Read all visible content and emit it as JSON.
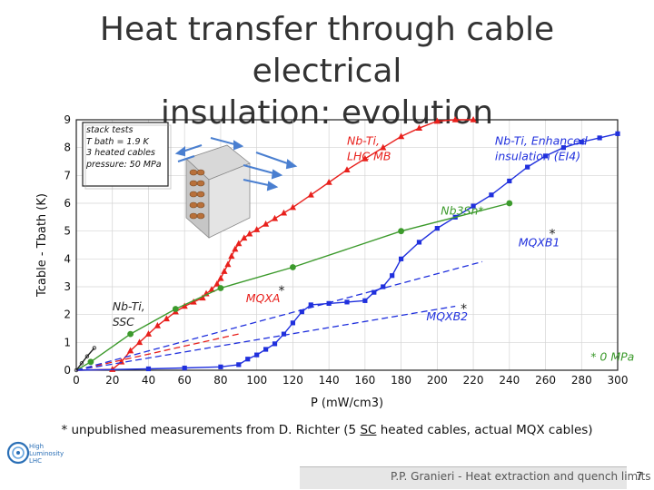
{
  "slide": {
    "title_line1": "Heat transfer through cable electrical",
    "title_line2": "insulation: evolution",
    "footnote_prefix": "* unpublished measurements from D. Richter (5 ",
    "footnote_sc": "SC",
    "footnote_suffix": " heated cables, actual MQX cables)",
    "footer_text": "P.P. Granieri - Heat extraction and quench limits",
    "page_number": "7",
    "logo_lines": [
      "High",
      "Luminosity",
      "LHC"
    ]
  },
  "chart_data": {
    "type": "line",
    "xlabel": "P (mW/cm3)",
    "ylabel": "Tcable - Tbath (K)",
    "xlim": [
      0,
      300
    ],
    "ylim": [
      0,
      9
    ],
    "xticks": [
      0,
      20,
      40,
      60,
      80,
      100,
      120,
      140,
      160,
      180,
      200,
      220,
      240,
      260,
      280,
      300
    ],
    "yticks": [
      0,
      1,
      2,
      3,
      4,
      5,
      6,
      7,
      8,
      9
    ],
    "legend_box": {
      "lines": [
        "stack tests",
        "T bath = 1.9 K",
        "3 heated cables",
        "pressure: 50 MPa"
      ],
      "placement": "top-left"
    },
    "colors": {
      "red": "#e8201c",
      "blue": "#2030dd",
      "green": "#3c9a2c",
      "black": "#222222"
    },
    "series": [
      {
        "name": "Nb-Ti, LHC MB",
        "color": "#e8201c",
        "style": "solid-triangles",
        "x": [
          0,
          20,
          25,
          30,
          35,
          40,
          45,
          50,
          55,
          60,
          65,
          70,
          72,
          75,
          78,
          80,
          82,
          84,
          86,
          88,
          90,
          93,
          96,
          100,
          105,
          110,
          115,
          120,
          130,
          140,
          150,
          160,
          170,
          180,
          190,
          200,
          210,
          220
        ],
        "y": [
          0,
          0.03,
          0.3,
          0.7,
          1.0,
          1.3,
          1.6,
          1.85,
          2.1,
          2.3,
          2.45,
          2.6,
          2.75,
          2.9,
          3.1,
          3.3,
          3.55,
          3.8,
          4.1,
          4.35,
          4.55,
          4.75,
          4.9,
          5.05,
          5.25,
          5.45,
          5.65,
          5.85,
          6.3,
          6.75,
          7.2,
          7.6,
          8.0,
          8.4,
          8.7,
          8.95,
          9.0,
          9.0
        ]
      },
      {
        "name": "Nb-Ti, Enhanced insulation (EI4)",
        "color": "#2030dd",
        "style": "solid-squares",
        "x": [
          0,
          40,
          60,
          80,
          90,
          95,
          100,
          105,
          110,
          115,
          120,
          125,
          130,
          140,
          150,
          160,
          165,
          170,
          175,
          180,
          190,
          200,
          210,
          220,
          230,
          240,
          250,
          260,
          270,
          280,
          290,
          300
        ],
        "y": [
          0,
          0.05,
          0.08,
          0.12,
          0.2,
          0.4,
          0.55,
          0.75,
          0.95,
          1.3,
          1.7,
          2.1,
          2.35,
          2.4,
          2.45,
          2.5,
          2.8,
          3.0,
          3.4,
          4.0,
          4.6,
          5.1,
          5.5,
          5.9,
          6.3,
          6.8,
          7.3,
          7.7,
          8.0,
          8.2,
          8.35,
          8.5
        ]
      },
      {
        "name": "Nb3Sn*",
        "color": "#3c9a2c",
        "style": "solid-circles",
        "x": [
          0,
          8,
          30,
          55,
          80,
          120,
          180,
          240
        ],
        "y": [
          0,
          0.3,
          1.3,
          2.2,
          2.95,
          3.7,
          5.0,
          6.0
        ]
      },
      {
        "name": "MQXA*",
        "color": "#e8201c",
        "style": "dashed",
        "x": [
          0,
          90
        ],
        "y": [
          0,
          1.3
        ]
      },
      {
        "name": "MQXB1*",
        "color": "#2030dd",
        "style": "dashed",
        "x": [
          0,
          225
        ],
        "y": [
          0,
          3.9
        ]
      },
      {
        "name": "MQXB2*",
        "color": "#2030dd",
        "style": "dashed",
        "x": [
          0,
          210
        ],
        "y": [
          0,
          2.3
        ]
      },
      {
        "name": "Nb-Ti, SSC",
        "color": "#222222",
        "style": "solid-small-circles",
        "x": [
          0,
          3,
          6,
          10
        ],
        "y": [
          0,
          0.25,
          0.5,
          0.8
        ]
      }
    ],
    "annotations": [
      {
        "text": "Nb-Ti,",
        "x": 150,
        "y": 8.1,
        "color": "#e8201c"
      },
      {
        "text": "LHC MB",
        "x": 150,
        "y": 7.55,
        "color": "#e8201c"
      },
      {
        "text": "Nb-Ti, Enhanced",
        "x": 232,
        "y": 8.1,
        "color": "#2030dd"
      },
      {
        "text": "insulation (EI4)",
        "x": 232,
        "y": 7.55,
        "color": "#2030dd"
      },
      {
        "text": "Nb3Sn*",
        "x": 202,
        "y": 5.6,
        "color": "#3c9a2c"
      },
      {
        "text": "MQXB1",
        "x": 245,
        "y": 4.45,
        "color": "#2030dd"
      },
      {
        "text": "*",
        "x": 262,
        "y": 4.75,
        "color": "#222222"
      },
      {
        "text": "MQXA",
        "x": 94,
        "y": 2.45,
        "color": "#e8201c"
      },
      {
        "text": "*",
        "x": 112,
        "y": 2.7,
        "color": "#222222"
      },
      {
        "text": "MQXB2",
        "x": 194,
        "y": 1.8,
        "color": "#2030dd"
      },
      {
        "text": "*",
        "x": 213,
        "y": 2.05,
        "color": "#222222"
      },
      {
        "text": "Nb-Ti,",
        "x": 20,
        "y": 2.15,
        "color": "#222222"
      },
      {
        "text": "SSC",
        "x": 20,
        "y": 1.6,
        "color": "#222222"
      },
      {
        "text": "* 0 MPa",
        "x": 285,
        "y": 0.35,
        "color": "#3c9a2c"
      }
    ]
  }
}
